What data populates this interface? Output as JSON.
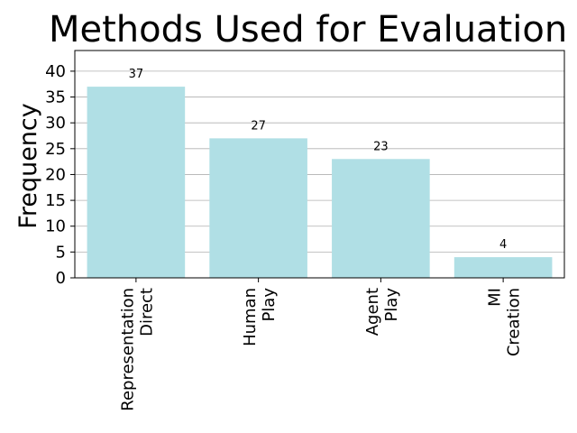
{
  "chart_data": {
    "type": "bar",
    "title": "Methods Used for Evaluation",
    "xlabel": "",
    "ylabel": "Frequency",
    "categories": [
      [
        "Representation",
        "Direct"
      ],
      [
        "Human",
        "Play"
      ],
      [
        "Agent",
        "Play"
      ],
      [
        "MI",
        "Creation"
      ]
    ],
    "values": [
      37,
      27,
      23,
      4
    ],
    "data_labels": [
      "37",
      "27",
      "23",
      "4"
    ],
    "ylim": [
      0,
      44
    ],
    "yticks": [
      0,
      5,
      10,
      15,
      20,
      25,
      30,
      35,
      40
    ],
    "grid": "horizontal",
    "bar_color": "#b0dfe5",
    "grid_color": "#b0b0b0"
  }
}
